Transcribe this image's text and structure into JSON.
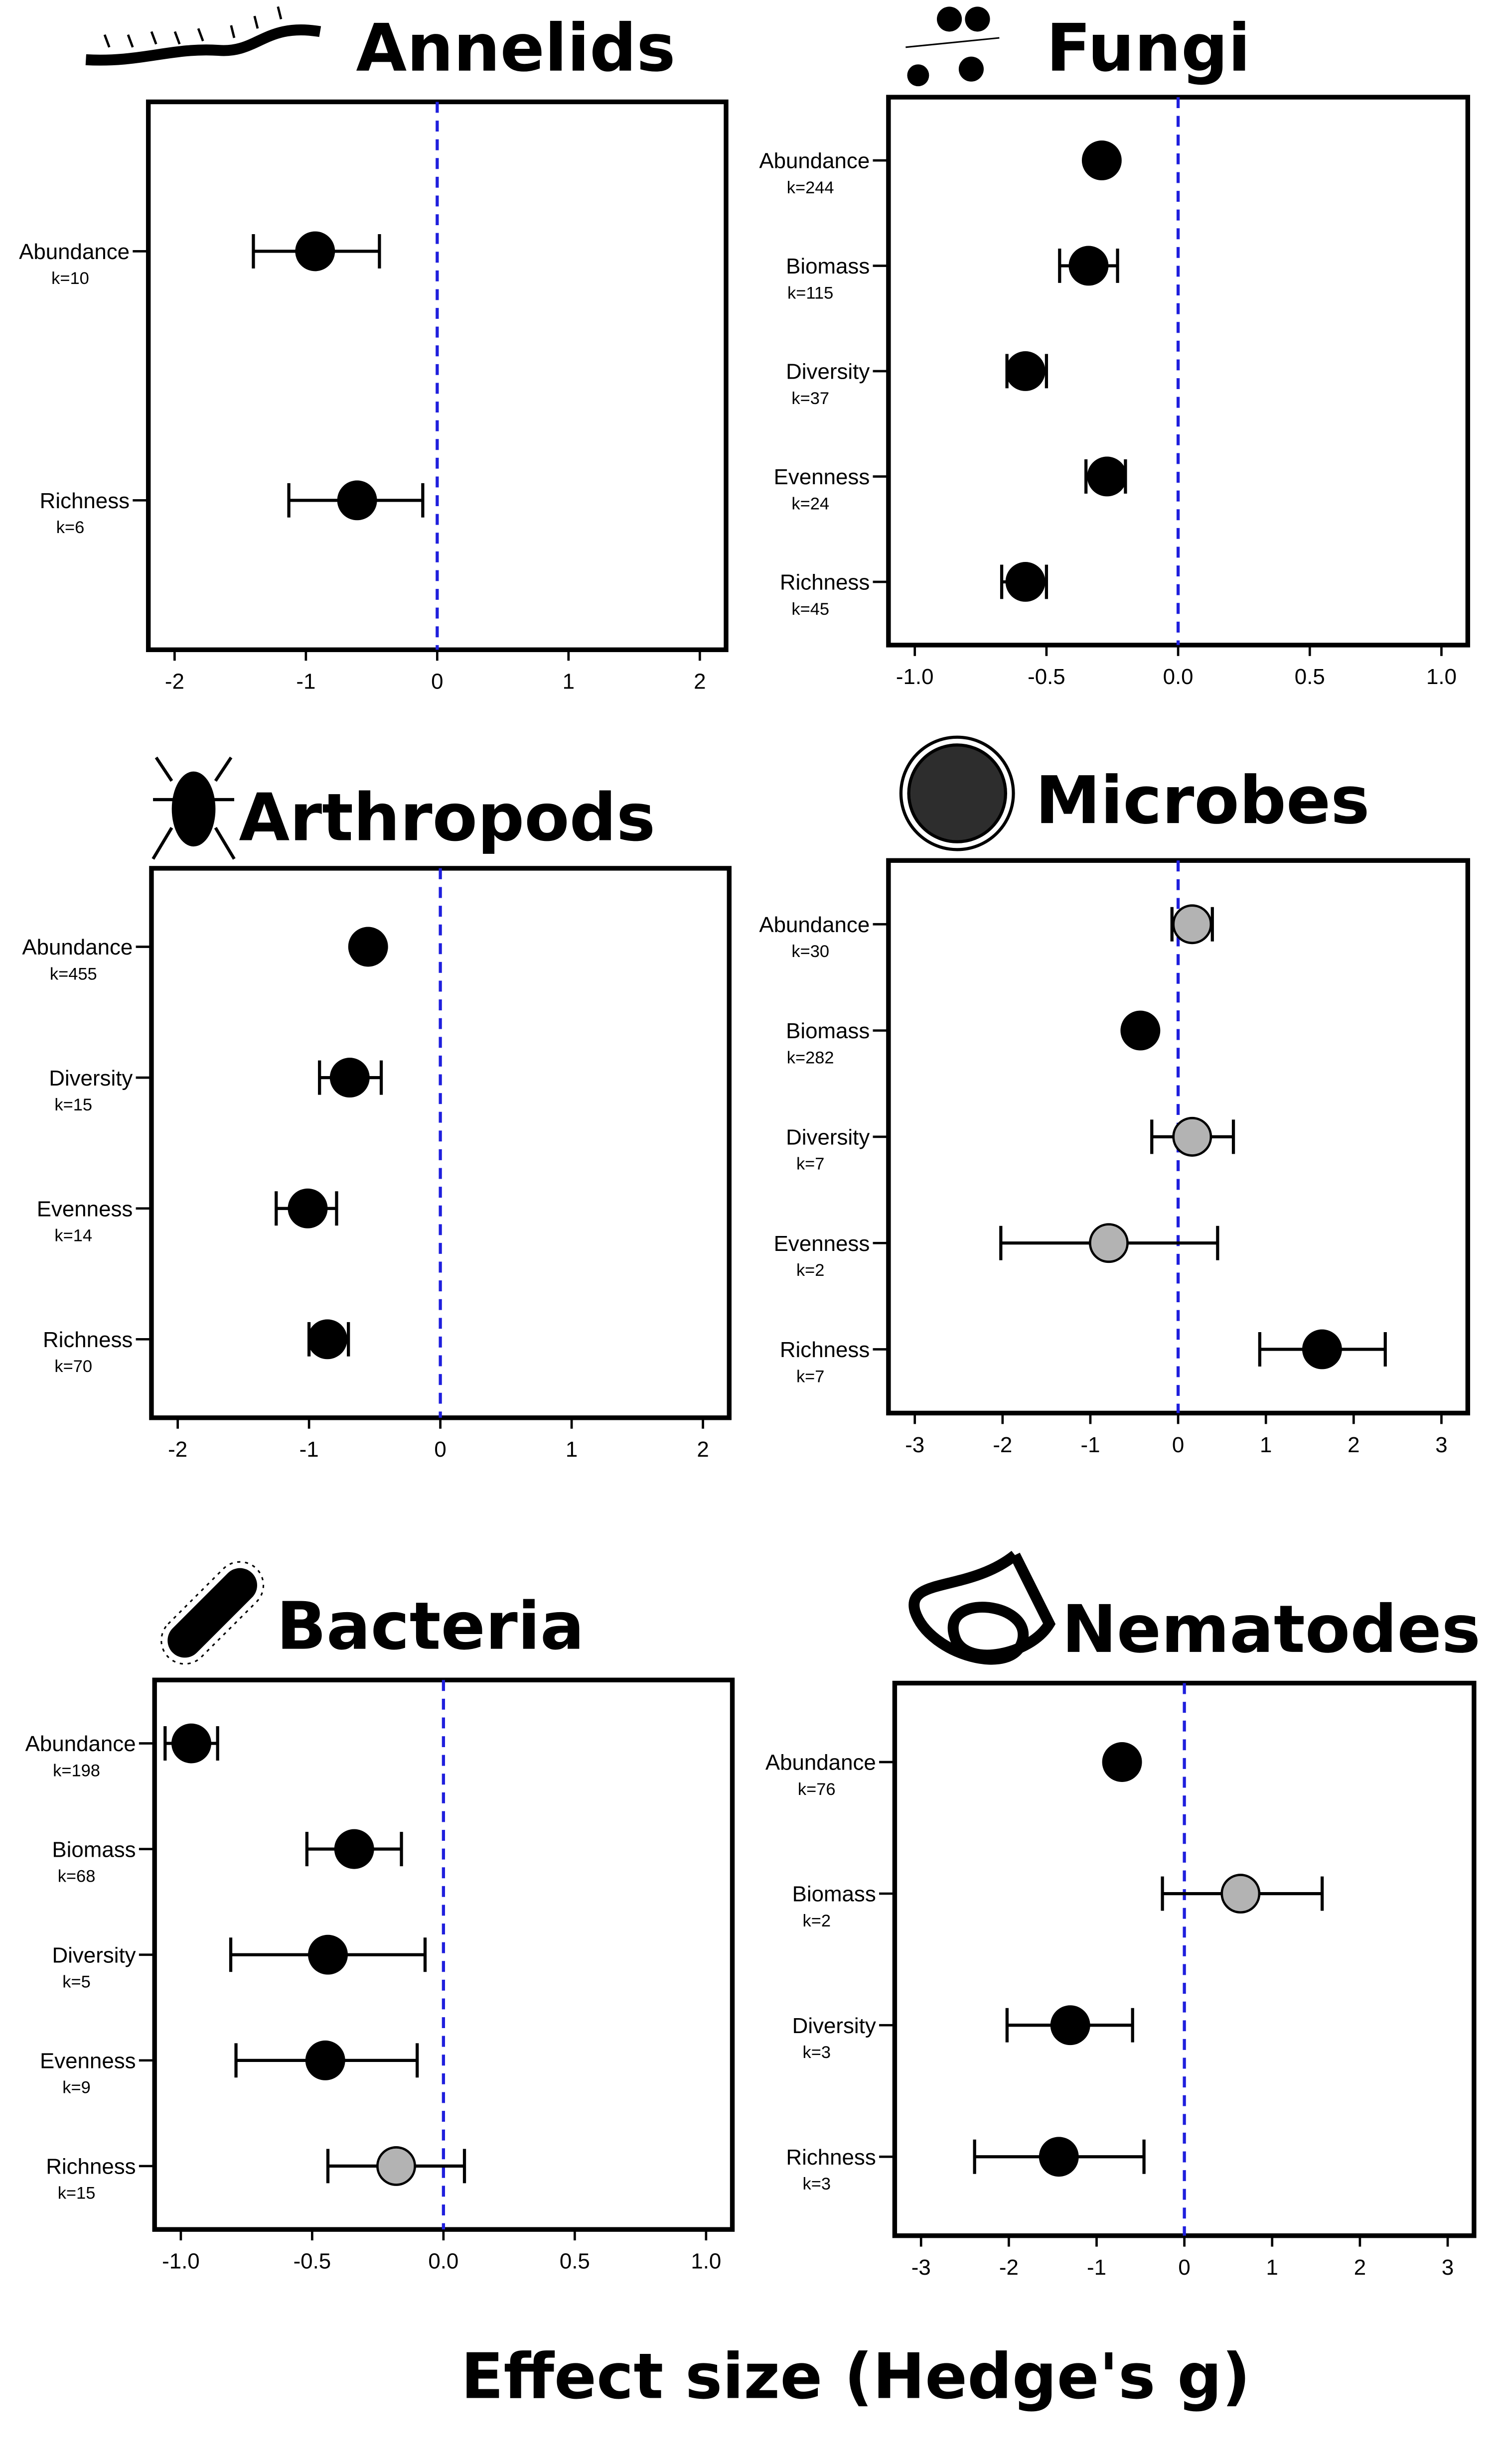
{
  "xlabel": "Effect size (Hedge's g)",
  "chart_data": [
    {
      "type": "forest",
      "title": "Annelids",
      "categories": [
        "Abundance",
        "Richness"
      ],
      "k_labels": [
        "k=10",
        "k=6"
      ],
      "values": [
        -0.93,
        -0.61
      ],
      "ci_lower": [
        -1.4,
        -1.13
      ],
      "ci_upper": [
        -0.44,
        -0.11
      ],
      "colors": [
        "#000000",
        "#000000"
      ],
      "xlim": [
        -2.2,
        2.2
      ],
      "xticks": [
        -2,
        -1,
        0,
        1,
        2
      ],
      "reference_x": 0,
      "reference_color": "#1f1fdd"
    },
    {
      "type": "forest",
      "title": "Fungi",
      "categories": [
        "Abundance",
        "Biomass",
        "Diversity",
        "Evenness",
        "Richness"
      ],
      "k_labels": [
        "k=244",
        "k=115",
        "k=37",
        "k=24",
        "k=45"
      ],
      "values": [
        -0.29,
        -0.34,
        -0.58,
        -0.27,
        -0.58
      ],
      "ci_lower": [
        -0.32,
        -0.45,
        -0.65,
        -0.35,
        -0.67
      ],
      "ci_upper": [
        -0.26,
        -0.23,
        -0.5,
        -0.2,
        -0.5
      ],
      "colors": [
        "#000000",
        "#000000",
        "#000000",
        "#000000",
        "#000000"
      ],
      "xlim": [
        -1.1,
        1.1
      ],
      "xticks": [
        {
          "value": -1,
          "label": "-1.0"
        },
        -0.5,
        {
          "value": 0,
          "label": "0.0"
        },
        0.5,
        {
          "value": 1,
          "label": "1.0"
        }
      ],
      "reference_x": 0,
      "reference_color": "#1f1fdd"
    },
    {
      "type": "forest",
      "title": "Arthropods",
      "categories": [
        "Abundance",
        "Diversity",
        "Evenness",
        "Richness"
      ],
      "k_labels": [
        "k=455",
        "k=15",
        "k=14",
        "k=70"
      ],
      "values": [
        -0.55,
        -0.69,
        -1.01,
        -0.86
      ],
      "ci_lower": [
        -0.6,
        -0.92,
        -1.25,
        -1.0
      ],
      "ci_upper": [
        -0.5,
        -0.45,
        -0.79,
        -0.7
      ],
      "colors": [
        "#000000",
        "#000000",
        "#000000",
        "#000000"
      ],
      "xlim": [
        -2.2,
        2.2
      ],
      "xticks": [
        -2,
        -1,
        0,
        1,
        2
      ],
      "reference_x": 0,
      "reference_color": "#1f1fdd"
    },
    {
      "type": "forest",
      "title": "Microbes",
      "categories": [
        "Abundance",
        "Biomass",
        "Diversity",
        "Evenness",
        "Richness"
      ],
      "k_labels": [
        "k=30",
        "k=282",
        "k=7",
        "k=2",
        "k=7"
      ],
      "values": [
        0.16,
        -0.43,
        0.16,
        -0.79,
        1.64
      ],
      "ci_lower": [
        -0.07,
        -0.5,
        -0.3,
        -2.02,
        0.93
      ],
      "ci_upper": [
        0.39,
        -0.36,
        0.63,
        0.45,
        2.36
      ],
      "colors": [
        "#b3b3b3",
        "#000000",
        "#b3b3b3",
        "#b3b3b3",
        "#000000"
      ],
      "xlim": [
        -3.3,
        3.3
      ],
      "xticks": [
        -3,
        -2,
        -1,
        0,
        1,
        2,
        3
      ],
      "reference_x": 0,
      "reference_color": "#1f1fdd"
    },
    {
      "type": "forest",
      "title": "Bacteria",
      "categories": [
        "Abundance",
        "Biomass",
        "Diversity",
        "Evenness",
        "Richness"
      ],
      "k_labels": [
        "k=198",
        "k=68",
        "k=5",
        "k=9",
        "k=15"
      ],
      "values": [
        -0.96,
        -0.34,
        -0.44,
        -0.45,
        -0.18
      ],
      "ci_lower": [
        -1.06,
        -0.52,
        -0.81,
        -0.79,
        -0.44
      ],
      "ci_upper": [
        -0.86,
        -0.16,
        -0.07,
        -0.1,
        0.08
      ],
      "colors": [
        "#000000",
        "#000000",
        "#000000",
        "#000000",
        "#b3b3b3"
      ],
      "xlim": [
        -1.1,
        1.1
      ],
      "xticks": [
        {
          "value": -1,
          "label": "-1.0"
        },
        -0.5,
        {
          "value": 0,
          "label": "0.0"
        },
        0.5,
        {
          "value": 1,
          "label": "1.0"
        }
      ],
      "reference_x": 0,
      "reference_color": "#1f1fdd"
    },
    {
      "type": "forest",
      "title": "Nematodes",
      "categories": [
        "Abundance",
        "Biomass",
        "Diversity",
        "Richness"
      ],
      "k_labels": [
        "k=76",
        "k=2",
        "k=3",
        "k=3"
      ],
      "values": [
        -0.71,
        0.64,
        -1.3,
        -1.43
      ],
      "ci_lower": [
        -0.78,
        -0.25,
        -2.02,
        -2.39
      ],
      "ci_upper": [
        -0.64,
        1.57,
        -0.59,
        -0.46
      ],
      "colors": [
        "#000000",
        "#b3b3b3",
        "#000000",
        "#000000"
      ],
      "xlim": [
        -3.3,
        3.3
      ],
      "xticks": [
        -3,
        -2,
        -1,
        0,
        1,
        2,
        3
      ],
      "reference_x": 0,
      "reference_color": "#1f1fdd"
    }
  ]
}
